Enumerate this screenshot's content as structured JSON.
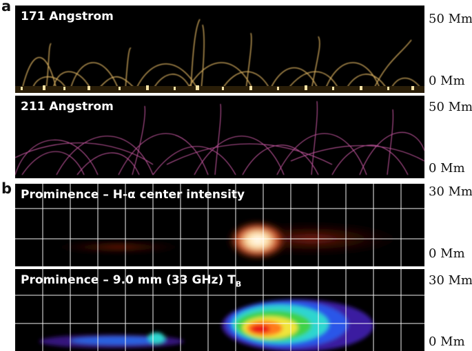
{
  "panels": {
    "a": {
      "letter": "a",
      "images": [
        {
          "caption": "171 Angstrom",
          "axis_top": "50 Mm",
          "axis_bottom": "0 Mm",
          "color": "#f2c46a"
        },
        {
          "caption": "211 Angstrom",
          "axis_top": "50 Mm",
          "axis_bottom": "0 Mm",
          "color": "#d860b0"
        }
      ]
    },
    "b": {
      "letter": "b",
      "images": [
        {
          "caption_main": "Prominence – H-α center intensity",
          "axis_top": "30 Mm",
          "axis_bottom": "0 Mm"
        },
        {
          "caption_main": "Prominence – 9.0 mm (33 GHz) T",
          "caption_sub": "B",
          "axis_top": "30 Mm",
          "axis_bottom": "0 Mm"
        }
      ]
    }
  }
}
